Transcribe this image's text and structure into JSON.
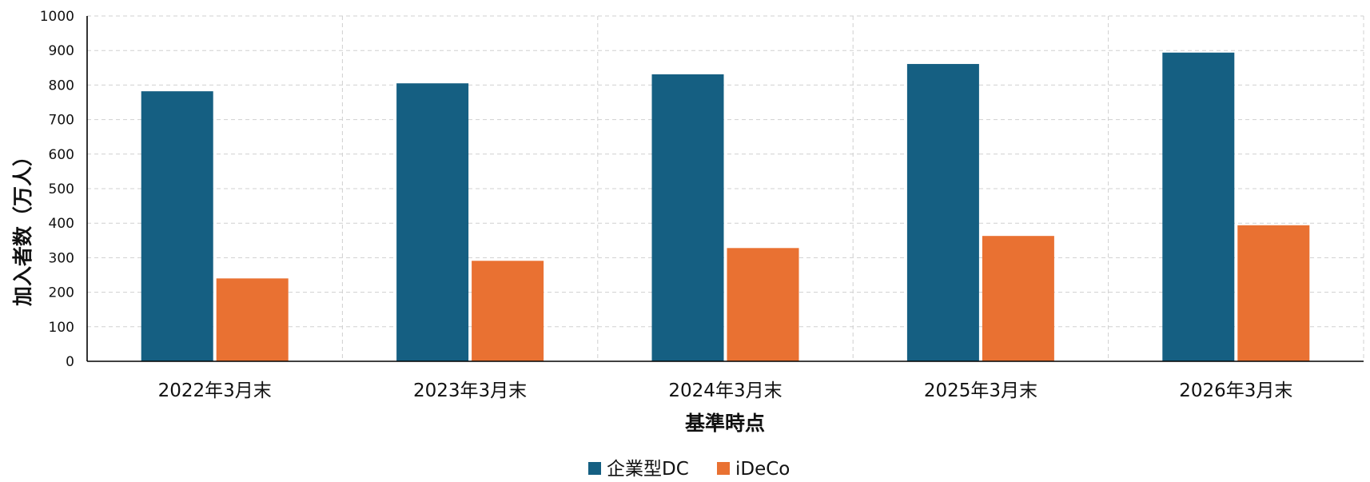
{
  "chart_data": {
    "type": "bar",
    "xlabel": "基準時点",
    "ylabel": "加入者数（万人）",
    "ylim": [
      0,
      1000
    ],
    "yticks": [
      0,
      100,
      200,
      300,
      400,
      500,
      600,
      700,
      800,
      900,
      1000
    ],
    "grid": true,
    "legend_position": "bottom-center",
    "categories": [
      "2022年3月末",
      "2023年3月末",
      "2024年3月末",
      "2025年3月末",
      "2026年3月末"
    ],
    "series": [
      {
        "name": "企業型DC",
        "color": "#155f82",
        "values": [
          782,
          805,
          831,
          861,
          894
        ]
      },
      {
        "name": "iDeCo",
        "color": "#e97132",
        "values": [
          240,
          291,
          328,
          363,
          394
        ]
      }
    ]
  }
}
